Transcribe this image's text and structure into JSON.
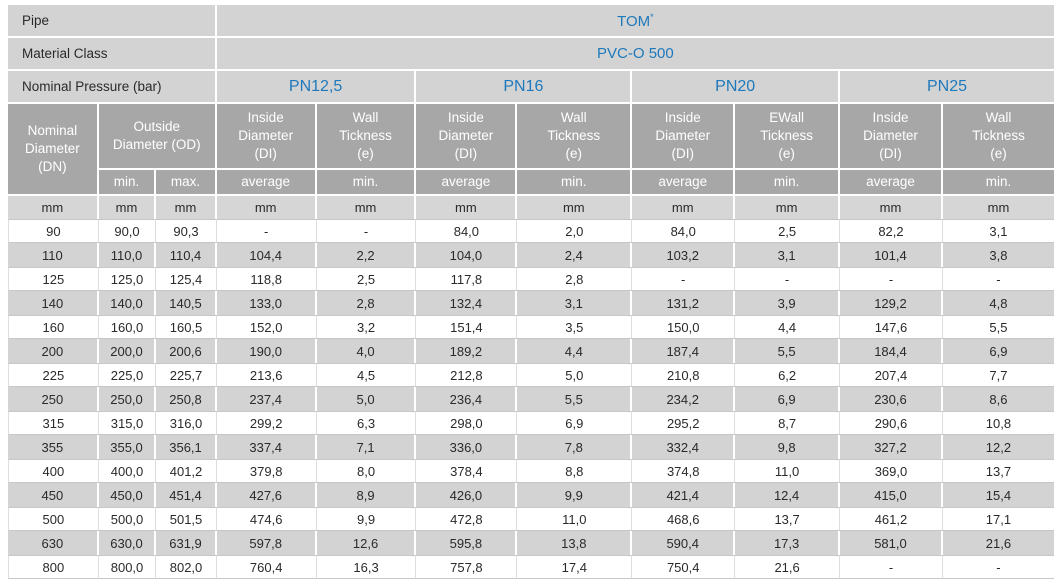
{
  "colors": {
    "accent_blue": "#1e79bc",
    "header_gray": "#a7a7a7",
    "row_gray": "#d3d3d3",
    "unit_gray": "#d6d6d6"
  },
  "info": {
    "pipe": {
      "label": "Pipe",
      "value": "TOM",
      "sup": "*"
    },
    "material": {
      "label": "Material Class",
      "value": "PVC-O 500"
    },
    "pressure": {
      "label": "Nominal Pressure (bar)"
    }
  },
  "table": {
    "nominal_diameter_title": "Nominal\nDiameter\n(DN)",
    "outside_diameter_title": "Outside\nDiameter (OD)",
    "od_sub_min": "min.",
    "od_sub_max": "max.",
    "groups": [
      {
        "pn": "PN12,5",
        "id_title": "Inside\nDiameter\n(DI)",
        "id_sub": "average",
        "wall_title": "Wall\nTickness\n(e)",
        "wall_sub": "min."
      },
      {
        "pn": "PN16",
        "id_title": "Inside\nDiameter\n(DI)",
        "id_sub": "average",
        "wall_title": "Wall\nTickness\n(e)",
        "wall_sub": "min."
      },
      {
        "pn": "PN20",
        "id_title": "Inside\nDiameter\n(DI)",
        "id_sub": "average",
        "wall_title": "EWall\nTickness\n(e)",
        "wall_sub": "min."
      },
      {
        "pn": "PN25",
        "id_title": "Inside\nDiameter\n(DI)",
        "id_sub": "average",
        "wall_title": "Wall\nTickness\n(e)",
        "wall_sub": "min."
      }
    ],
    "unit_cells": [
      "mm",
      "mm",
      "mm",
      "mm",
      "mm",
      "mm",
      "mm",
      "mm",
      "mm",
      "mm",
      "mm"
    ],
    "rows": [
      [
        "90",
        "90,0",
        "90,3",
        "-",
        "-",
        "84,0",
        "2,0",
        "84,0",
        "2,5",
        "82,2",
        "3,1"
      ],
      [
        "110",
        "110,0",
        "110,4",
        "104,4",
        "2,2",
        "104,0",
        "2,4",
        "103,2",
        "3,1",
        "101,4",
        "3,8"
      ],
      [
        "125",
        "125,0",
        "125,4",
        "118,8",
        "2,5",
        "117,8",
        "2,8",
        "-",
        "-",
        "-",
        "-"
      ],
      [
        "140",
        "140,0",
        "140,5",
        "133,0",
        "2,8",
        "132,4",
        "3,1",
        "131,2",
        "3,9",
        "129,2",
        "4,8"
      ],
      [
        "160",
        "160,0",
        "160,5",
        "152,0",
        "3,2",
        "151,4",
        "3,5",
        "150,0",
        "4,4",
        "147,6",
        "5,5"
      ],
      [
        "200",
        "200,0",
        "200,6",
        "190,0",
        "4,0",
        "189,2",
        "4,4",
        "187,4",
        "5,5",
        "184,4",
        "6,9"
      ],
      [
        "225",
        "225,0",
        "225,7",
        "213,6",
        "4,5",
        "212,8",
        "5,0",
        "210,8",
        "6,2",
        "207,4",
        "7,7"
      ],
      [
        "250",
        "250,0",
        "250,8",
        "237,4",
        "5,0",
        "236,4",
        "5,5",
        "234,2",
        "6,9",
        "230,6",
        "8,6"
      ],
      [
        "315",
        "315,0",
        "316,0",
        "299,2",
        "6,3",
        "298,0",
        "6,9",
        "295,2",
        "8,7",
        "290,6",
        "10,8"
      ],
      [
        "355",
        "355,0",
        "356,1",
        "337,4",
        "7,1",
        "336,0",
        "7,8",
        "332,4",
        "9,8",
        "327,2",
        "12,2"
      ],
      [
        "400",
        "400,0",
        "401,2",
        "379,8",
        "8,0",
        "378,4",
        "8,8",
        "374,8",
        "11,0",
        "369,0",
        "13,7"
      ],
      [
        "450",
        "450,0",
        "451,4",
        "427,6",
        "8,9",
        "426,0",
        "9,9",
        "421,4",
        "12,4",
        "415,0",
        "15,4"
      ],
      [
        "500",
        "500,0",
        "501,5",
        "474,6",
        "9,9",
        "472,8",
        "11,0",
        "468,6",
        "13,7",
        "461,2",
        "17,1"
      ],
      [
        "630",
        "630,0",
        "631,9",
        "597,8",
        "12,6",
        "595,8",
        "13,8",
        "590,4",
        "17,3",
        "581,0",
        "21,6"
      ],
      [
        "800",
        "800,0",
        "802,0",
        "760,4",
        "16,3",
        "757,8",
        "17,4",
        "750,4",
        "21,6",
        "-",
        "-"
      ]
    ]
  }
}
